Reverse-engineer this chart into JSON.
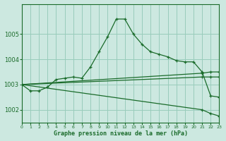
{
  "bg_color": "#cce8e0",
  "grid_color": "#99ccbb",
  "line_color": "#1a6b2a",
  "title": "Graphe pression niveau de la mer (hPa)",
  "xlim": [
    0,
    23
  ],
  "ylim": [
    1001.5,
    1006.2
  ],
  "yticks": [
    1002,
    1003,
    1004,
    1005
  ],
  "xticks": [
    0,
    1,
    2,
    3,
    4,
    5,
    6,
    7,
    8,
    9,
    10,
    11,
    12,
    13,
    14,
    15,
    16,
    17,
    18,
    19,
    20,
    21,
    22,
    23
  ],
  "series": [
    {
      "x": [
        0,
        1,
        2,
        3,
        4,
        5,
        6,
        7,
        8,
        9,
        10,
        11,
        12,
        13,
        14,
        15,
        16,
        17,
        18,
        19,
        20,
        21,
        22,
        23
      ],
      "y": [
        1003.0,
        1002.75,
        1002.75,
        1002.9,
        1003.2,
        1003.25,
        1003.3,
        1003.25,
        1003.7,
        1004.3,
        1004.9,
        1005.6,
        1005.6,
        1005.0,
        1004.6,
        1004.3,
        1004.2,
        1004.1,
        1003.95,
        1003.9,
        1003.9,
        1003.5,
        1002.55,
        1002.5
      ]
    },
    {
      "x": [
        0,
        21,
        22,
        23
      ],
      "y": [
        1003.0,
        1003.45,
        1003.5,
        1003.5
      ]
    },
    {
      "x": [
        0,
        21,
        22,
        23
      ],
      "y": [
        1003.0,
        1003.3,
        1003.3,
        1003.3
      ]
    },
    {
      "x": [
        0,
        21,
        22,
        23
      ],
      "y": [
        1003.0,
        1002.0,
        1001.85,
        1001.75
      ]
    }
  ]
}
